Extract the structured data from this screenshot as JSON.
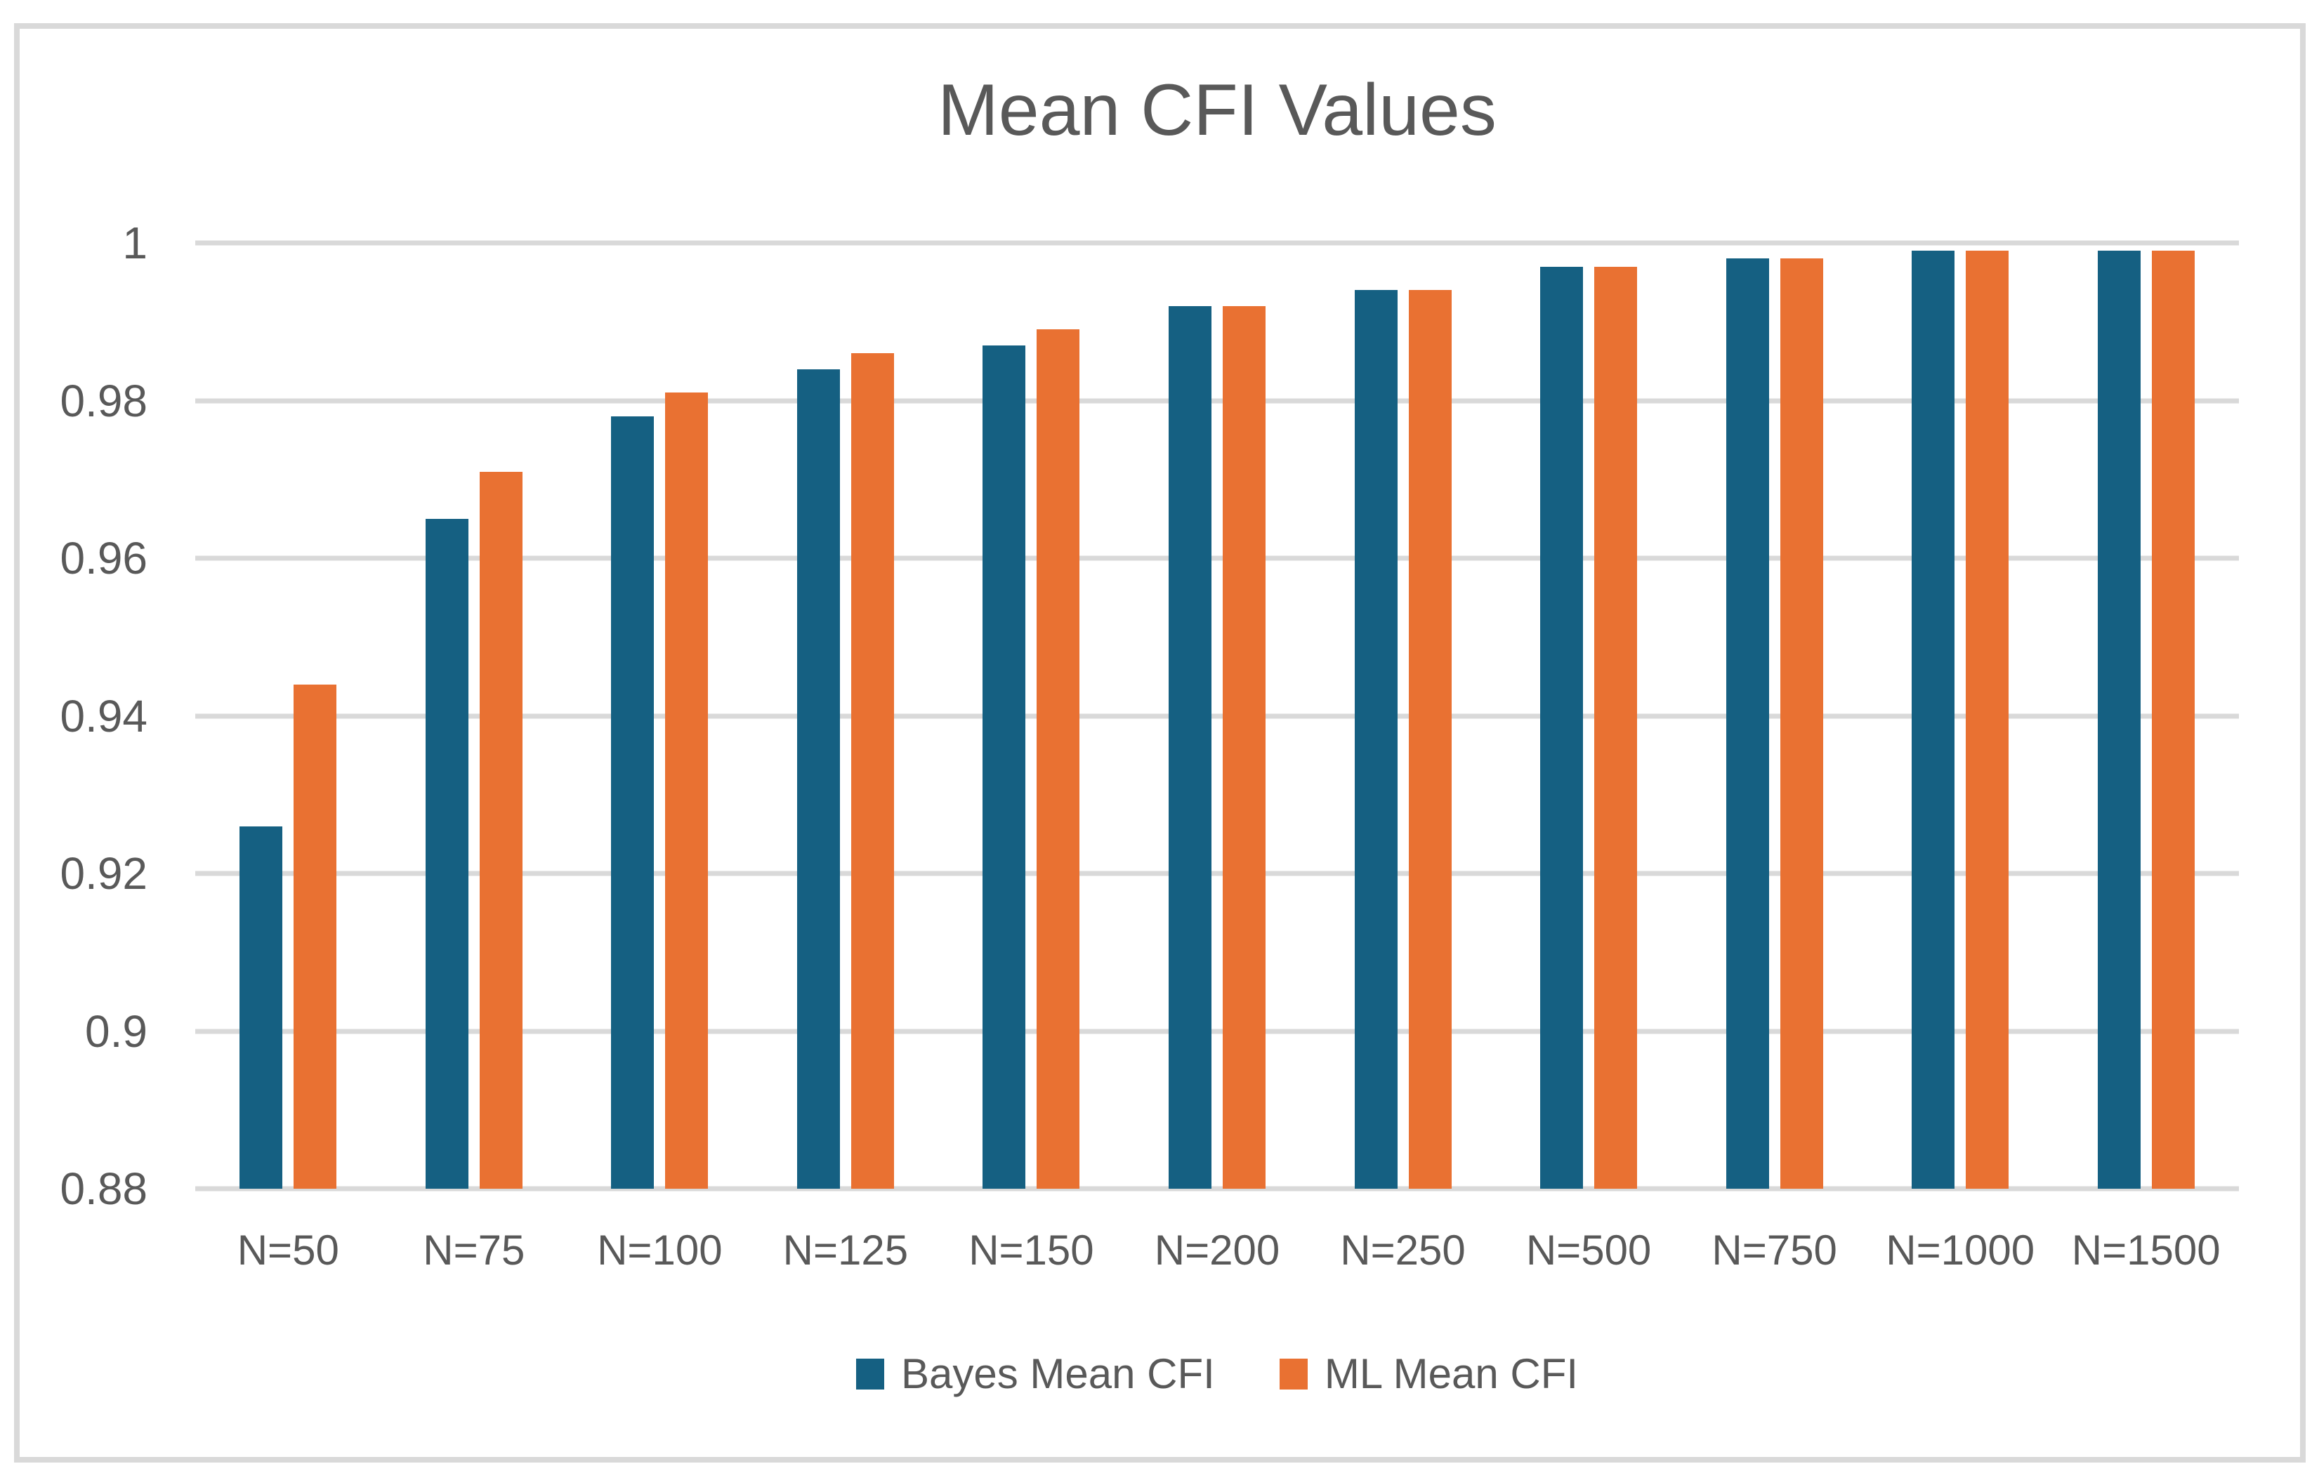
{
  "chart_data": {
    "type": "bar",
    "title": "Mean CFI Values",
    "categories": [
      "N=50",
      "N=75",
      "N=100",
      "N=125",
      "N=150",
      "N=200",
      "N=250",
      "N=500",
      "N=750",
      "N=1000",
      "N=1500"
    ],
    "series": [
      {
        "name": "Bayes Mean CFI",
        "color": "#156082",
        "values": [
          0.926,
          0.965,
          0.978,
          0.984,
          0.987,
          0.992,
          0.994,
          0.997,
          0.998,
          0.999,
          0.999
        ]
      },
      {
        "name": "ML Mean CFI",
        "color": "#E97132",
        "values": [
          0.944,
          0.971,
          0.981,
          0.986,
          0.989,
          0.992,
          0.994,
          0.997,
          0.998,
          0.999,
          0.999
        ]
      }
    ],
    "ylim": [
      0.88,
      1.0
    ],
    "ytick_step": 0.02,
    "ytick_labels": [
      "0.88",
      "0.9",
      "0.92",
      "0.94",
      "0.96",
      "0.98",
      "1"
    ],
    "xlabel": "",
    "ylabel": "",
    "grid": true,
    "legend_position": "bottom"
  },
  "colors": {
    "background": "#FFFFFF",
    "frame_border": "#D9D9D9",
    "gridline": "#D9D9D9",
    "text": "#595959"
  }
}
